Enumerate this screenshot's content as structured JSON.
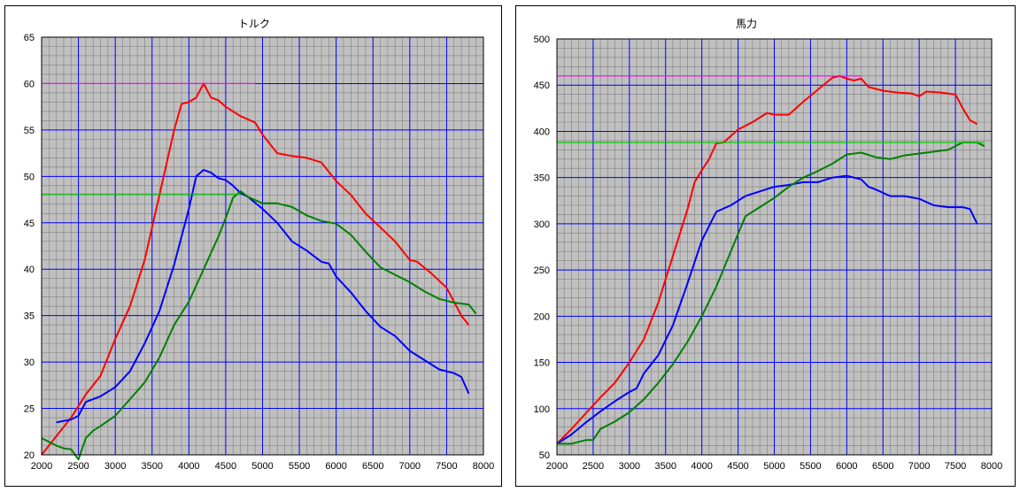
{
  "chart_data": [
    {
      "type": "line",
      "title": "トルク",
      "xlabel": "",
      "ylabel": "",
      "xlim": [
        2000,
        8000
      ],
      "ylim": [
        20,
        65
      ],
      "x_ticks": [
        2000,
        2500,
        3000,
        3500,
        4000,
        4500,
        5000,
        5500,
        6000,
        6500,
        7000,
        7500,
        8000
      ],
      "y_ticks": [
        20,
        25,
        30,
        35,
        40,
        45,
        50,
        55,
        60,
        65
      ],
      "grid": true,
      "colors": {
        "plot_bg": "#c0c0c0",
        "minor_grid": "#808080",
        "major_grid": "#0000ff"
      },
      "series": [
        {
          "color": "#ff0000",
          "points": [
            [
              2000,
              20
            ],
            [
              2200,
              22
            ],
            [
              2400,
              24
            ],
            [
              2600,
              26.5
            ],
            [
              2800,
              28.5
            ],
            [
              3000,
              32.5
            ],
            [
              3200,
              36
            ],
            [
              3400,
              41
            ],
            [
              3600,
              48
            ],
            [
              3800,
              55
            ],
            [
              3900,
              57.8
            ],
            [
              4000,
              58
            ],
            [
              4100,
              58.5
            ],
            [
              4200,
              60
            ],
            [
              4300,
              58.5
            ],
            [
              4400,
              58.2
            ],
            [
              4500,
              57.5
            ],
            [
              4700,
              56.5
            ],
            [
              4900,
              55.8
            ],
            [
              5000,
              54.5
            ],
            [
              5200,
              52.5
            ],
            [
              5400,
              52.2
            ],
            [
              5600,
              52
            ],
            [
              5800,
              51.5
            ],
            [
              6000,
              49.5
            ],
            [
              6200,
              48
            ],
            [
              6400,
              46
            ],
            [
              6600,
              44.5
            ],
            [
              6800,
              43
            ],
            [
              7000,
              41
            ],
            [
              7100,
              40.8
            ],
            [
              7300,
              39.5
            ],
            [
              7500,
              38
            ],
            [
              7600,
              36.5
            ],
            [
              7700,
              35
            ],
            [
              7800,
              34
            ]
          ]
        },
        {
          "color": "#0000ff",
          "points": [
            [
              2200,
              23.5
            ],
            [
              2400,
              23.8
            ],
            [
              2500,
              24.2
            ],
            [
              2600,
              25.7
            ],
            [
              2800,
              26.3
            ],
            [
              3000,
              27.3
            ],
            [
              3200,
              29
            ],
            [
              3400,
              32
            ],
            [
              3600,
              35.5
            ],
            [
              3800,
              40.5
            ],
            [
              4000,
              46.5
            ],
            [
              4100,
              50
            ],
            [
              4200,
              50.7
            ],
            [
              4300,
              50.4
            ],
            [
              4400,
              49.8
            ],
            [
              4500,
              49.6
            ],
            [
              4600,
              49
            ],
            [
              4700,
              48.2
            ],
            [
              4800,
              47.8
            ],
            [
              5000,
              46.5
            ],
            [
              5200,
              45
            ],
            [
              5400,
              43
            ],
            [
              5600,
              42
            ],
            [
              5800,
              40.8
            ],
            [
              5900,
              40.6
            ],
            [
              6000,
              39.2
            ],
            [
              6200,
              37.5
            ],
            [
              6400,
              35.5
            ],
            [
              6600,
              33.8
            ],
            [
              6800,
              32.8
            ],
            [
              7000,
              31.2
            ],
            [
              7200,
              30.2
            ],
            [
              7400,
              29.2
            ],
            [
              7600,
              28.8
            ],
            [
              7700,
              28.4
            ],
            [
              7800,
              26.6
            ]
          ]
        },
        {
          "color": "#008000",
          "points": [
            [
              2000,
              21.8
            ],
            [
              2200,
              21
            ],
            [
              2300,
              20.7
            ],
            [
              2400,
              20.6
            ],
            [
              2500,
              19.5
            ],
            [
              2600,
              21.8
            ],
            [
              2700,
              22.6
            ],
            [
              2800,
              23.1
            ],
            [
              3000,
              24.2
            ],
            [
              3200,
              26
            ],
            [
              3400,
              27.8
            ],
            [
              3600,
              30.5
            ],
            [
              3800,
              34
            ],
            [
              4000,
              36.5
            ],
            [
              4200,
              40
            ],
            [
              4400,
              43.5
            ],
            [
              4500,
              45.5
            ],
            [
              4600,
              47.7
            ],
            [
              4700,
              48.4
            ],
            [
              4800,
              47.8
            ],
            [
              5000,
              47.1
            ],
            [
              5200,
              47.1
            ],
            [
              5400,
              46.7
            ],
            [
              5600,
              45.8
            ],
            [
              5800,
              45.2
            ],
            [
              6000,
              44.9
            ],
            [
              6200,
              43.7
            ],
            [
              6400,
              41.9
            ],
            [
              6600,
              40.2
            ],
            [
              6800,
              39.4
            ],
            [
              7000,
              38.6
            ],
            [
              7200,
              37.6
            ],
            [
              7400,
              36.8
            ],
            [
              7600,
              36.4
            ],
            [
              7800,
              36.2
            ],
            [
              7900,
              35.2
            ]
          ]
        },
        {
          "color": "#ff00ff",
          "points": [
            [
              2000,
              60
            ],
            [
              4900,
              60
            ]
          ]
        },
        {
          "color": "#00cc00",
          "points": [
            [
              2000,
              48.1
            ],
            [
              4700,
              48.1
            ]
          ]
        }
      ]
    },
    {
      "type": "line",
      "title": "馬力",
      "xlabel": "",
      "ylabel": "",
      "xlim": [
        2000,
        8000
      ],
      "ylim": [
        50,
        500
      ],
      "x_ticks": [
        2000,
        2500,
        3000,
        3500,
        4000,
        4500,
        5000,
        5500,
        6000,
        6500,
        7000,
        7500,
        8000
      ],
      "y_ticks": [
        50,
        100,
        150,
        200,
        250,
        300,
        350,
        400,
        450,
        500
      ],
      "grid": true,
      "colors": {
        "plot_bg": "#c0c0c0",
        "minor_grid": "#808080",
        "major_grid": "#0000ff"
      },
      "series": [
        {
          "color": "#ff0000",
          "points": [
            [
              2000,
              62
            ],
            [
              2200,
              78
            ],
            [
              2400,
              95
            ],
            [
              2600,
              112
            ],
            [
              2800,
              128
            ],
            [
              3000,
              150
            ],
            [
              3200,
              175
            ],
            [
              3400,
              215
            ],
            [
              3600,
              265
            ],
            [
              3800,
              315
            ],
            [
              3900,
              345
            ],
            [
              4000,
              358
            ],
            [
              4100,
              370
            ],
            [
              4200,
              387
            ],
            [
              4300,
              388
            ],
            [
              4400,
              395
            ],
            [
              4500,
              402
            ],
            [
              4700,
              410
            ],
            [
              4900,
              420
            ],
            [
              5000,
              418
            ],
            [
              5200,
              418
            ],
            [
              5400,
              432
            ],
            [
              5600,
              445
            ],
            [
              5800,
              458
            ],
            [
              5900,
              460
            ],
            [
              6000,
              457
            ],
            [
              6100,
              455
            ],
            [
              6200,
              457
            ],
            [
              6300,
              448
            ],
            [
              6500,
              444
            ],
            [
              6700,
              442
            ],
            [
              6900,
              441
            ],
            [
              7000,
              438
            ],
            [
              7100,
              443
            ],
            [
              7300,
              442
            ],
            [
              7500,
              440
            ],
            [
              7600,
              425
            ],
            [
              7700,
              412
            ],
            [
              7800,
              408
            ]
          ]
        },
        {
          "color": "#0000ff",
          "points": [
            [
              2000,
              62
            ],
            [
              2200,
              72
            ],
            [
              2400,
              85
            ],
            [
              2600,
              97
            ],
            [
              2800,
              108
            ],
            [
              3000,
              118
            ],
            [
              3100,
              122
            ],
            [
              3200,
              138
            ],
            [
              3400,
              158
            ],
            [
              3600,
              190
            ],
            [
              3800,
              235
            ],
            [
              4000,
              282
            ],
            [
              4200,
              313
            ],
            [
              4400,
              320
            ],
            [
              4600,
              330
            ],
            [
              4800,
              335
            ],
            [
              5000,
              340
            ],
            [
              5200,
              342
            ],
            [
              5400,
              345
            ],
            [
              5600,
              345
            ],
            [
              5800,
              350
            ],
            [
              6000,
              352
            ],
            [
              6200,
              348
            ],
            [
              6300,
              340
            ],
            [
              6400,
              337
            ],
            [
              6600,
              330
            ],
            [
              6800,
              330
            ],
            [
              7000,
              327
            ],
            [
              7200,
              320
            ],
            [
              7400,
              318
            ],
            [
              7600,
              318
            ],
            [
              7700,
              316
            ],
            [
              7800,
              300
            ]
          ]
        },
        {
          "color": "#008000",
          "points": [
            [
              2000,
              62
            ],
            [
              2200,
              62
            ],
            [
              2400,
              66
            ],
            [
              2500,
              66
            ],
            [
              2600,
              78
            ],
            [
              2800,
              86
            ],
            [
              3000,
              96
            ],
            [
              3200,
              110
            ],
            [
              3400,
              128
            ],
            [
              3600,
              148
            ],
            [
              3800,
              172
            ],
            [
              4000,
              200
            ],
            [
              4200,
              232
            ],
            [
              4400,
              270
            ],
            [
              4600,
              308
            ],
            [
              4800,
              318
            ],
            [
              5000,
              328
            ],
            [
              5200,
              340
            ],
            [
              5400,
              350
            ],
            [
              5600,
              357
            ],
            [
              5800,
              365
            ],
            [
              6000,
              375
            ],
            [
              6200,
              377
            ],
            [
              6400,
              372
            ],
            [
              6600,
              370
            ],
            [
              6800,
              374
            ],
            [
              7000,
              376
            ],
            [
              7200,
              378
            ],
            [
              7400,
              380
            ],
            [
              7600,
              388
            ],
            [
              7800,
              388
            ],
            [
              7900,
              384
            ]
          ]
        },
        {
          "color": "#ff00ff",
          "points": [
            [
              2000,
              460
            ],
            [
              6200,
              460
            ]
          ]
        },
        {
          "color": "#00cc00",
          "points": [
            [
              2000,
              388
            ],
            [
              7900,
              388
            ]
          ]
        }
      ]
    }
  ]
}
